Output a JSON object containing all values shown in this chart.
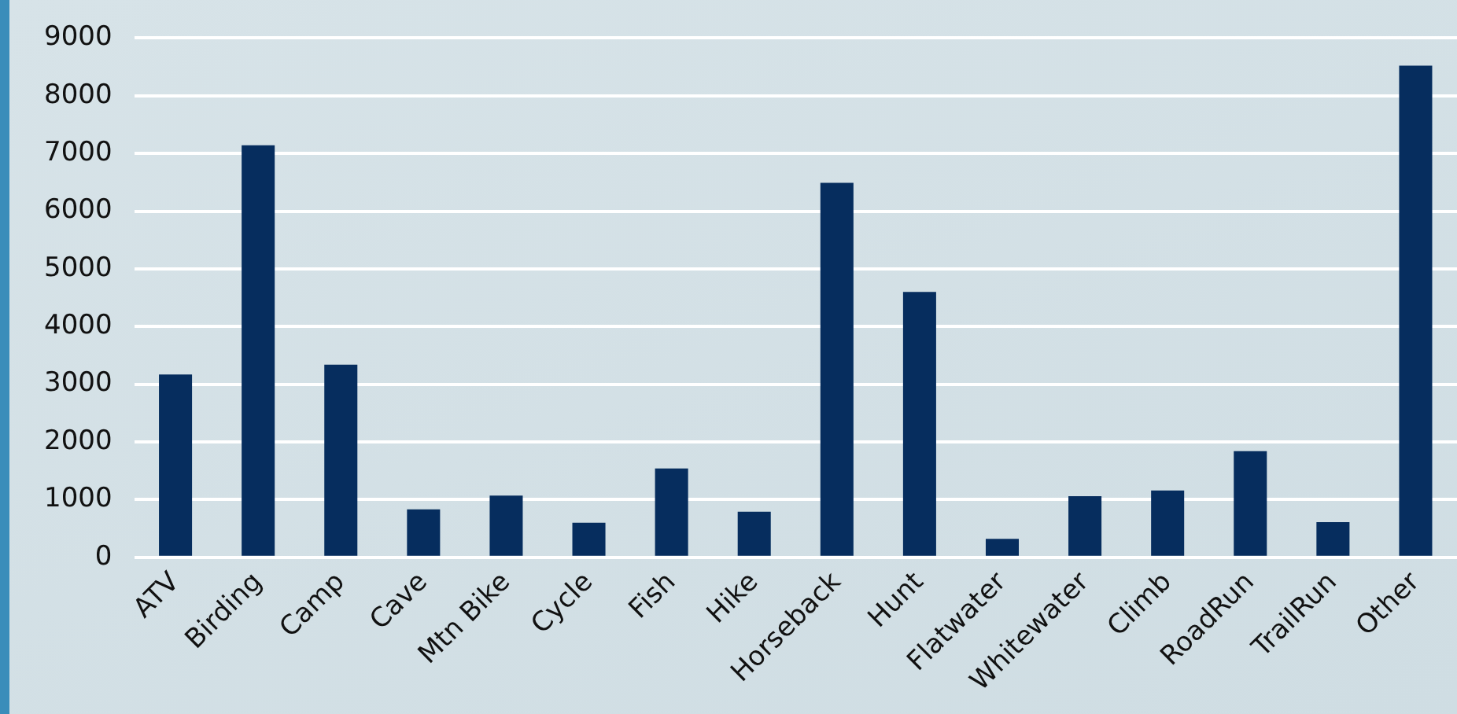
{
  "chart_data": {
    "type": "bar",
    "categories": [
      "ATV",
      "Birding",
      "Camp",
      "Cave",
      "Mtn Bike",
      "Cycle",
      "Fish",
      "Hike",
      "Horseback",
      "Hunt",
      "Flatwater",
      "Whitewater",
      "Climb",
      "RoadRun",
      "TrailRun",
      "Other"
    ],
    "values": [
      3170,
      7140,
      3340,
      830,
      1070,
      600,
      1540,
      790,
      6490,
      4600,
      320,
      1060,
      1160,
      1840,
      610,
      8520
    ],
    "color": "#062d5e",
    "ylim": [
      0,
      9000
    ],
    "yticks": [
      0,
      1000,
      2000,
      3000,
      4000,
      5000,
      6000,
      7000,
      8000,
      9000
    ],
    "grid": "y",
    "legend": false
  }
}
